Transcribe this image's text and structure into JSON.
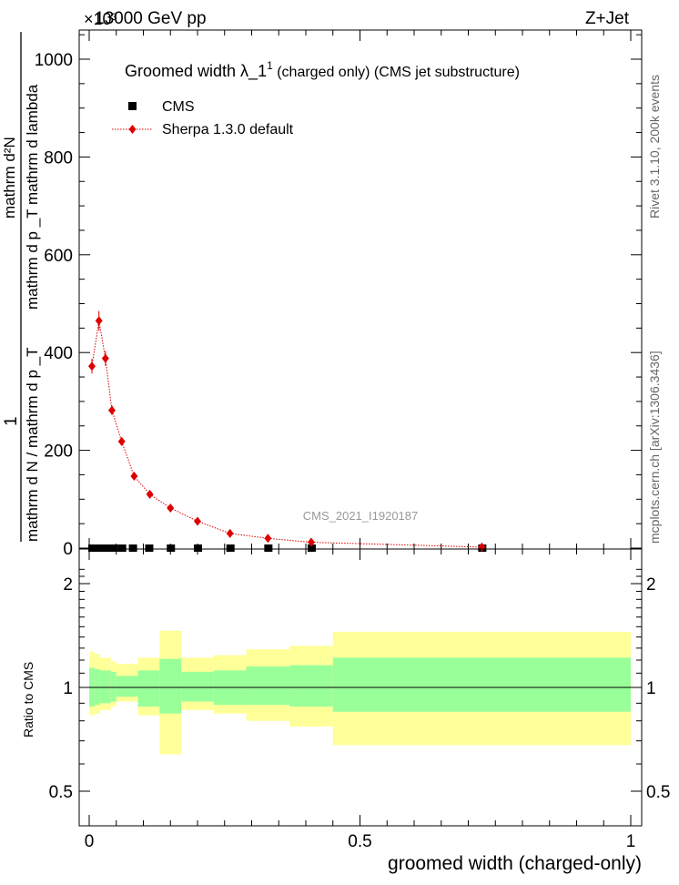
{
  "header": {
    "left": "13000 GeV pp",
    "right": "Z+Jet"
  },
  "exponent_label": "×10³",
  "side_labels": {
    "rivet": "Rivet 3.1.10,  200k events",
    "mcplots": "mcplots.cern.ch [arXiv:1306.3436]"
  },
  "watermark": "CMS_2021_I1920187",
  "legend_title": {
    "main": "Groomed width  λ_1",
    "sup": "1",
    "rest": " (charged only) (CMS jet substructure)"
  },
  "legend": [
    {
      "label": "CMS",
      "marker": "square",
      "color": "#000000"
    },
    {
      "label": "Sherpa 1.3.0 default",
      "marker": "diamond",
      "color": "#dd0000"
    }
  ],
  "colors": {
    "mc": "#dd0000",
    "data": "#000000",
    "band_inner": "#99ff99",
    "band_outer": "#ffff99"
  },
  "chart_data": [
    {
      "type": "line",
      "xlim": [
        0,
        1
      ],
      "ylim": [
        0,
        1050
      ],
      "y_multiplier": "×10³",
      "ylabel_numerator": "1",
      "ylabel_denominator": "mathrm d N / mathrm d p  _T",
      "ylabel_superscript": "mathrm d²N",
      "ylabel_fraction": "mathrm d p _T mathrm d lambda",
      "yticks": [
        0,
        200,
        400,
        600,
        800,
        1000
      ],
      "series": [
        {
          "name": "CMS",
          "points": [
            {
              "x": 0.005,
              "y": 0
            },
            {
              "x": 0.015,
              "y": 0
            },
            {
              "x": 0.025,
              "y": 0
            },
            {
              "x": 0.035,
              "y": 0
            },
            {
              "x": 0.045,
              "y": 0
            },
            {
              "x": 0.06,
              "y": 0
            },
            {
              "x": 0.08,
              "y": 0
            },
            {
              "x": 0.11,
              "y": 0
            },
            {
              "x": 0.15,
              "y": 0
            },
            {
              "x": 0.2,
              "y": 0
            },
            {
              "x": 0.26,
              "y": 0
            },
            {
              "x": 0.33,
              "y": 0
            },
            {
              "x": 0.41,
              "y": 0
            },
            {
              "x": 0.725,
              "y": 0
            }
          ]
        },
        {
          "name": "Sherpa 1.3.0 default",
          "points": [
            {
              "x": 0.005,
              "y": 372,
              "err": 15
            },
            {
              "x": 0.018,
              "y": 465,
              "err": 20
            },
            {
              "x": 0.03,
              "y": 388,
              "err": 15
            },
            {
              "x": 0.042,
              "y": 282,
              "err": 10
            },
            {
              "x": 0.06,
              "y": 218,
              "err": 8
            },
            {
              "x": 0.083,
              "y": 147,
              "err": 5
            },
            {
              "x": 0.112,
              "y": 110,
              "err": 4
            },
            {
              "x": 0.15,
              "y": 82,
              "err": 3
            },
            {
              "x": 0.2,
              "y": 55,
              "err": 2
            },
            {
              "x": 0.26,
              "y": 30,
              "err": 1
            },
            {
              "x": 0.33,
              "y": 20,
              "err": 1
            },
            {
              "x": 0.41,
              "y": 12,
              "err": 1
            },
            {
              "x": 0.725,
              "y": 2,
              "err": 0.5
            }
          ]
        }
      ]
    },
    {
      "type": "area",
      "xlim": [
        0,
        1
      ],
      "ylim": [
        0.4,
        2.3
      ],
      "log_scale": true,
      "ylabel": "Ratio to CMS",
      "xlabel": "groomed width (charged-only)",
      "xticks": [
        {
          "v": 0,
          "label": "0"
        },
        {
          "v": 0.5,
          "label": "0.5"
        },
        {
          "v": 1,
          "label": "1"
        }
      ],
      "yticks": [
        {
          "v": 0.5,
          "label": "0.5"
        },
        {
          "v": 1,
          "label": "1"
        },
        {
          "v": 2,
          "label": "2"
        }
      ],
      "bands": [
        {
          "x0": 0.0,
          "x1": 0.01,
          "inner": [
            0.88,
            1.14
          ],
          "outer": [
            0.83,
            1.27
          ]
        },
        {
          "x0": 0.01,
          "x1": 0.02,
          "inner": [
            0.89,
            1.13
          ],
          "outer": [
            0.84,
            1.25
          ]
        },
        {
          "x0": 0.02,
          "x1": 0.04,
          "inner": [
            0.9,
            1.12
          ],
          "outer": [
            0.86,
            1.22
          ]
        },
        {
          "x0": 0.04,
          "x1": 0.05,
          "inner": [
            0.91,
            1.11
          ],
          "outer": [
            0.88,
            1.19
          ]
        },
        {
          "x0": 0.05,
          "x1": 0.09,
          "inner": [
            0.94,
            1.08
          ],
          "outer": [
            0.91,
            1.17
          ]
        },
        {
          "x0": 0.09,
          "x1": 0.13,
          "inner": [
            0.88,
            1.12
          ],
          "outer": [
            0.83,
            1.22
          ]
        },
        {
          "x0": 0.13,
          "x1": 0.17,
          "inner": [
            0.84,
            1.21
          ],
          "outer": [
            0.64,
            1.46
          ]
        },
        {
          "x0": 0.17,
          "x1": 0.23,
          "inner": [
            0.91,
            1.11
          ],
          "outer": [
            0.86,
            1.22
          ]
        },
        {
          "x0": 0.23,
          "x1": 0.29,
          "inner": [
            0.89,
            1.12
          ],
          "outer": [
            0.84,
            1.24
          ]
        },
        {
          "x0": 0.29,
          "x1": 0.37,
          "inner": [
            0.89,
            1.15
          ],
          "outer": [
            0.8,
            1.29
          ]
        },
        {
          "x0": 0.37,
          "x1": 0.45,
          "inner": [
            0.88,
            1.16
          ],
          "outer": [
            0.77,
            1.32
          ]
        },
        {
          "x0": 0.45,
          "x1": 1.0,
          "inner": [
            0.85,
            1.22
          ],
          "outer": [
            0.68,
            1.45
          ]
        }
      ],
      "reference_line": 1
    }
  ]
}
